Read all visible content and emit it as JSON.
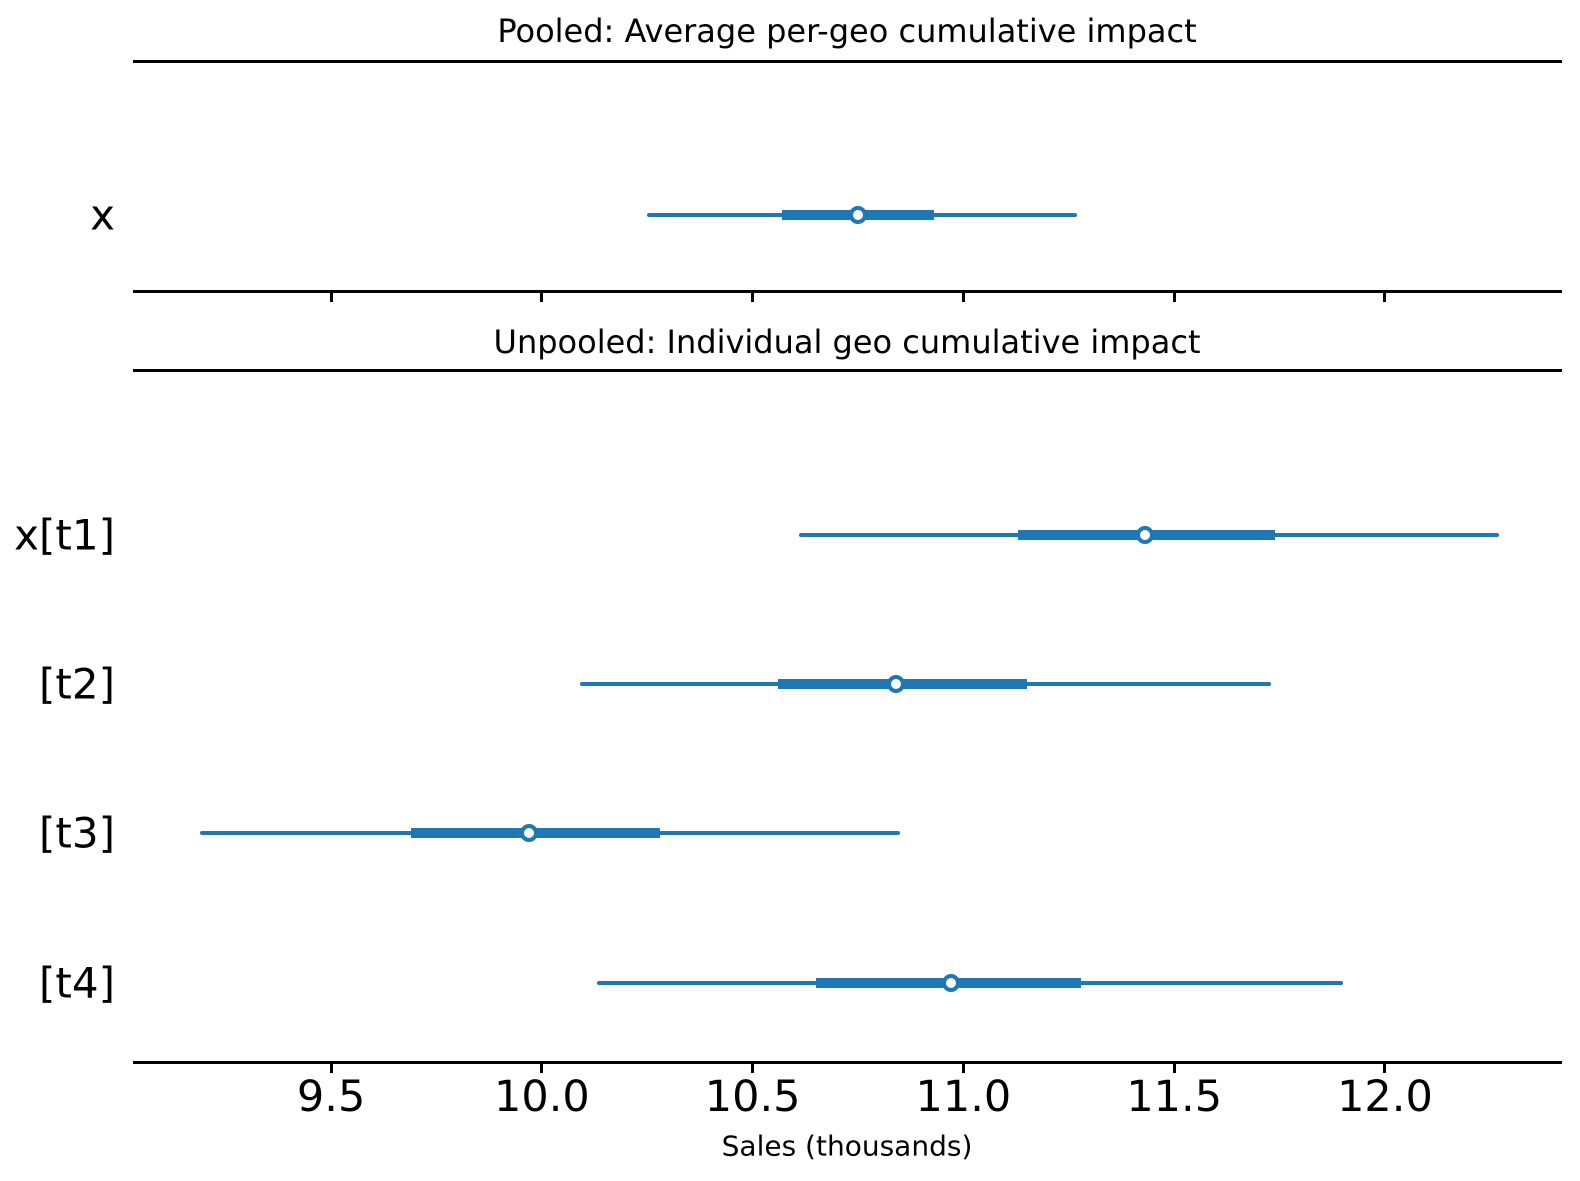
{
  "chart_data": {
    "type": "forest",
    "title_pooled": "Pooled: Average per-geo cumulative impact",
    "title_unpooled": "Unpooled: Individual geo cumulative impact",
    "xlabel": "Sales (thousands)",
    "x_ticks": [
      9.5,
      10.0,
      10.5,
      11.0,
      11.5,
      12.0
    ],
    "x_tick_labels": [
      "9.5",
      "10.0",
      "10.5",
      "11.0",
      "11.5",
      "12.0"
    ],
    "xlim": [
      9.03,
      12.42
    ],
    "accent_color": "#1f77b4",
    "axis_color": "#000000",
    "legend_position": "none",
    "grid": false,
    "panels": [
      {
        "title": "Pooled: Average per-geo cumulative impact",
        "rows": [
          {
            "label": "x",
            "mean": 10.75,
            "hdi_94": [
              10.25,
              11.27
            ],
            "hdi_50": [
              10.57,
              10.93
            ]
          }
        ]
      },
      {
        "title": "Unpooled: Individual geo cumulative impact",
        "rows": [
          {
            "label": "x[t1]",
            "mean": 11.43,
            "hdi_94": [
              10.61,
              12.27
            ],
            "hdi_50": [
              11.13,
              11.74
            ]
          },
          {
            "label": "[t2]",
            "mean": 10.84,
            "hdi_94": [
              10.09,
              11.73
            ],
            "hdi_50": [
              10.56,
              11.15
            ]
          },
          {
            "label": "[t3]",
            "mean": 9.97,
            "hdi_94": [
              9.19,
              10.85
            ],
            "hdi_50": [
              9.69,
              10.28
            ]
          },
          {
            "label": "[t4]",
            "mean": 10.97,
            "hdi_94": [
              10.13,
              11.9
            ],
            "hdi_50": [
              10.65,
              11.28
            ]
          }
        ]
      }
    ]
  }
}
